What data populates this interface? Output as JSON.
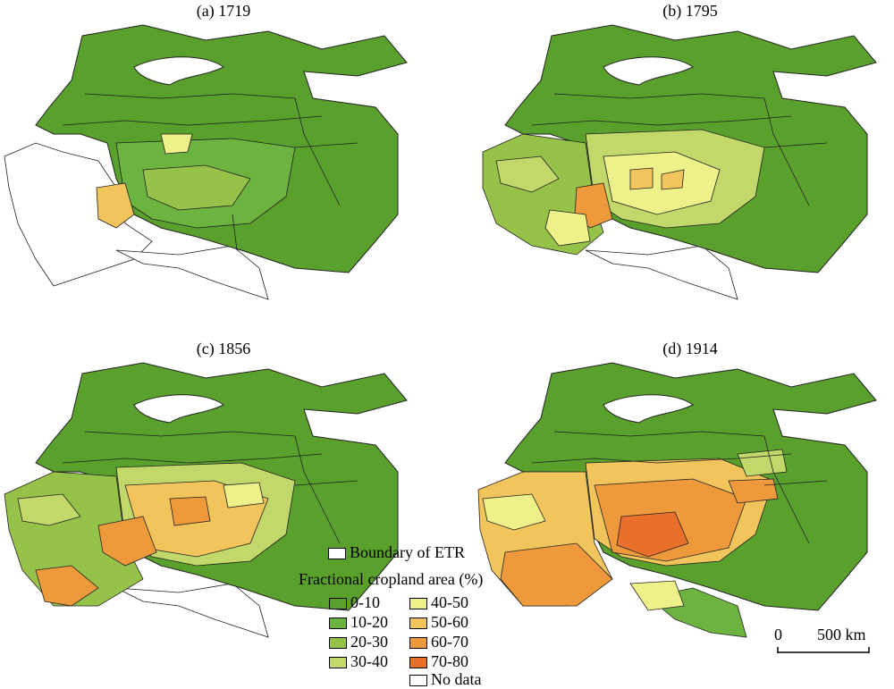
{
  "panels": [
    {
      "label": "(a) 1719"
    },
    {
      "label": "(b) 1795"
    },
    {
      "label": "(c) 1856"
    },
    {
      "label": "(d) 1914"
    }
  ],
  "legend": {
    "boundary_label": "Boundary of ETR",
    "title": "Fractional cropland area (%)",
    "classes": [
      {
        "label": "0-10",
        "color": "#5aa02c"
      },
      {
        "label": "10-20",
        "color": "#6db33f"
      },
      {
        "label": "20-30",
        "color": "#97c24a"
      },
      {
        "label": "30-40",
        "color": "#c2d86a"
      },
      {
        "label": "40-50",
        "color": "#eef08a"
      },
      {
        "label": "50-60",
        "color": "#f2c45c"
      },
      {
        "label": "60-70",
        "color": "#ee9a3c"
      },
      {
        "label": "70-80",
        "color": "#e8702a"
      },
      {
        "label": "No data",
        "color": "#ffffff"
      }
    ]
  },
  "scalebar": {
    "zero": "0",
    "distance": "500 km"
  }
}
